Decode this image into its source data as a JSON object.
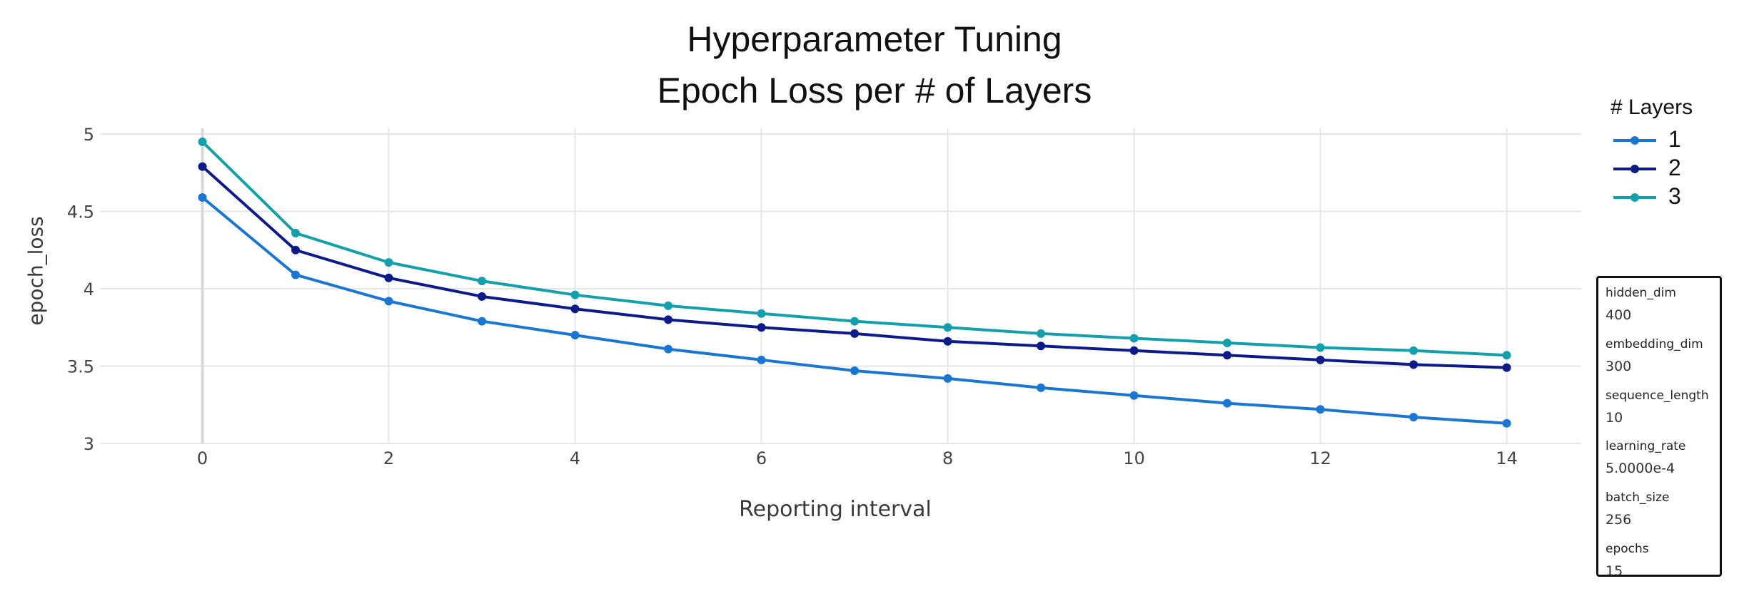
{
  "chart_data": {
    "type": "line",
    "title": "Hyperparameter Tuning",
    "subtitle": "Epoch Loss per # of Layers",
    "xlabel": "Reporting interval",
    "ylabel": "epoch_loss",
    "x": [
      0,
      1,
      2,
      3,
      4,
      5,
      6,
      7,
      8,
      9,
      10,
      11,
      12,
      13,
      14
    ],
    "xlim": [
      -1.1,
      14.8
    ],
    "ylim": [
      3.0,
      5.0
    ],
    "xticks": [
      0,
      2,
      4,
      6,
      8,
      10,
      12,
      14
    ],
    "yticks": [
      3,
      3.5,
      4,
      4.5,
      5
    ],
    "ytick_labels": [
      "3",
      "3.5",
      "4",
      "4.5",
      "5"
    ],
    "grid": true,
    "legend_title": "# Layers",
    "legend_position": "right",
    "series": [
      {
        "name": "1",
        "color": "#1976d2",
        "values": [
          4.59,
          4.09,
          3.92,
          3.79,
          3.7,
          3.61,
          3.54,
          3.47,
          3.42,
          3.36,
          3.31,
          3.26,
          3.22,
          3.17,
          3.13
        ]
      },
      {
        "name": "2",
        "color": "#0d1a8c",
        "values": [
          4.79,
          4.25,
          4.07,
          3.95,
          3.87,
          3.8,
          3.75,
          3.71,
          3.66,
          3.63,
          3.6,
          3.57,
          3.54,
          3.51,
          3.49
        ]
      },
      {
        "name": "3",
        "color": "#13a0ad",
        "values": [
          4.95,
          4.36,
          4.17,
          4.05,
          3.96,
          3.89,
          3.84,
          3.79,
          3.75,
          3.71,
          3.68,
          3.65,
          3.62,
          3.6,
          3.57
        ]
      }
    ]
  },
  "params": [
    {
      "name": "hidden_dim",
      "value": "400"
    },
    {
      "name": "embedding_dim",
      "value": "300"
    },
    {
      "name": "sequence_length",
      "value": "10"
    },
    {
      "name": "learning_rate",
      "value": "5.0000e-4"
    },
    {
      "name": "batch_size",
      "value": "256"
    },
    {
      "name": "epochs",
      "value": "15"
    }
  ]
}
